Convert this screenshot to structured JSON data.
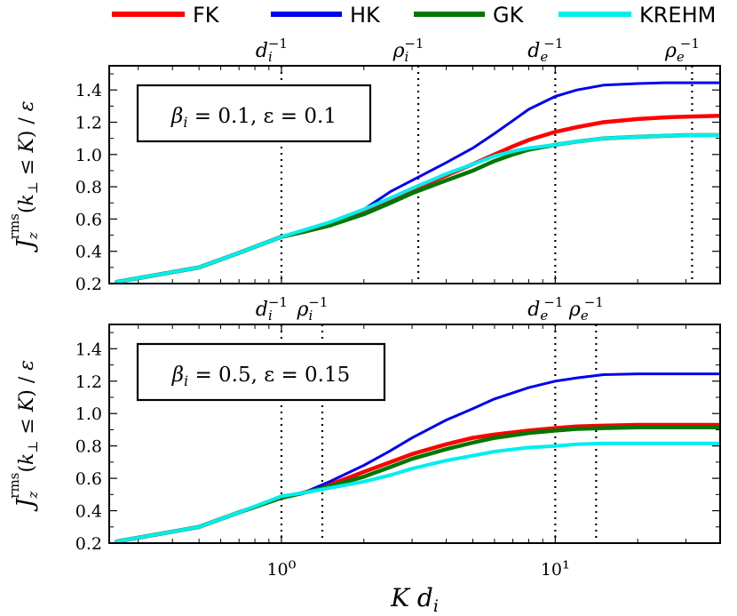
{
  "chart_data": {
    "type": "line",
    "xscale": "log",
    "xlim": [
      0.235,
      40
    ],
    "ylim": [
      0.2,
      1.55
    ],
    "xlabel": "K d_i",
    "ylabel": "J_z^rms(k_⊥ ≤ K) / ε",
    "x_ticks": [
      {
        "value": 1,
        "label": "10⁰"
      },
      {
        "value": 10,
        "label": "10¹"
      }
    ],
    "y_ticks": [
      0.2,
      0.4,
      0.6,
      0.8,
      1.0,
      1.2,
      1.4
    ],
    "y_tick_labels": [
      "0.2",
      "0.4",
      "0.6",
      "0.8",
      "1.0",
      "1.2",
      "1.4"
    ],
    "legend": {
      "position": "top",
      "entries": [
        {
          "name": "FK",
          "color": "#ff0000"
        },
        {
          "name": "HK",
          "color": "#0000ee"
        },
        {
          "name": "GK",
          "color": "#007700"
        },
        {
          "name": "KREHM",
          "color": "#00eeee"
        }
      ]
    },
    "panels": [
      {
        "annotation": "β_i = 0.1, ε = 0.1",
        "vlines": [
          {
            "x": 1.0,
            "label": "d_i^-1"
          },
          {
            "x": 3.16,
            "label": "ρ_i^-1"
          },
          {
            "x": 10.0,
            "label": "d_e^-1"
          },
          {
            "x": 31.6,
            "label": "ρ_e^-1"
          }
        ],
        "series": [
          {
            "name": "FK",
            "color": "#ff0000",
            "width": 4.5,
            "x": [
              0.25,
              0.5,
              0.7,
              1.0,
              1.2,
              1.5,
              2.0,
              2.5,
              3.0,
              4.0,
              5.0,
              6.0,
              7.0,
              8.0,
              10.0,
              12.0,
              15.0,
              20.0,
              25.0,
              30.0,
              40.0
            ],
            "y": [
              0.21,
              0.3,
              0.39,
              0.49,
              0.52,
              0.56,
              0.64,
              0.72,
              0.78,
              0.87,
              0.94,
              1.0,
              1.05,
              1.09,
              1.14,
              1.17,
              1.2,
              1.22,
              1.23,
              1.235,
              1.24
            ]
          },
          {
            "name": "HK",
            "color": "#0000ee",
            "width": 3,
            "x": [
              0.25,
              0.5,
              0.7,
              1.0,
              1.2,
              1.5,
              2.0,
              2.5,
              3.0,
              4.0,
              5.0,
              6.0,
              7.0,
              8.0,
              10.0,
              12.0,
              15.0,
              20.0,
              25.0,
              30.0,
              40.0
            ],
            "y": [
              0.21,
              0.3,
              0.39,
              0.49,
              0.52,
              0.57,
              0.66,
              0.77,
              0.84,
              0.95,
              1.04,
              1.13,
              1.21,
              1.28,
              1.36,
              1.4,
              1.43,
              1.44,
              1.445,
              1.445,
              1.445
            ]
          },
          {
            "name": "GK",
            "color": "#007700",
            "width": 4.5,
            "x": [
              0.25,
              0.5,
              0.7,
              1.0,
              1.2,
              1.5,
              2.0,
              2.5,
              3.0,
              4.0,
              5.0,
              6.0,
              7.0,
              8.0,
              10.0,
              12.0,
              15.0,
              20.0,
              25.0,
              30.0,
              40.0
            ],
            "y": [
              0.21,
              0.3,
              0.39,
              0.49,
              0.52,
              0.56,
              0.63,
              0.7,
              0.76,
              0.84,
              0.9,
              0.96,
              1.0,
              1.03,
              1.06,
              1.08,
              1.1,
              1.11,
              1.115,
              1.12,
              1.12
            ]
          },
          {
            "name": "KREHM",
            "color": "#00eeee",
            "width": 4,
            "x": [
              0.25,
              0.5,
              0.7,
              1.0,
              1.2,
              1.5,
              2.0,
              2.5,
              3.0,
              4.0,
              5.0,
              6.0,
              7.0,
              8.0,
              10.0,
              12.0,
              15.0,
              20.0,
              25.0,
              30.0,
              40.0
            ],
            "y": [
              0.21,
              0.3,
              0.39,
              0.49,
              0.53,
              0.58,
              0.66,
              0.73,
              0.79,
              0.88,
              0.94,
              0.99,
              1.02,
              1.04,
              1.06,
              1.08,
              1.1,
              1.11,
              1.115,
              1.12,
              1.12
            ]
          }
        ]
      },
      {
        "annotation": "β_i = 0.5, ε = 0.15",
        "vlines": [
          {
            "x": 1.0,
            "label": "d_i^-1"
          },
          {
            "x": 1.41,
            "label": "ρ_i^-1"
          },
          {
            "x": 10.0,
            "label": "d_e^-1"
          },
          {
            "x": 14.1,
            "label": "ρ_e^-1"
          }
        ],
        "series": [
          {
            "name": "FK",
            "color": "#ff0000",
            "width": 4.5,
            "x": [
              0.25,
              0.5,
              0.7,
              1.0,
              1.2,
              1.5,
              2.0,
              2.5,
              3.0,
              4.0,
              5.0,
              6.0,
              8.0,
              10.0,
              12.0,
              15.0,
              20.0,
              30.0,
              40.0
            ],
            "y": [
              0.21,
              0.3,
              0.39,
              0.48,
              0.51,
              0.56,
              0.64,
              0.7,
              0.75,
              0.81,
              0.85,
              0.87,
              0.895,
              0.91,
              0.92,
              0.925,
              0.93,
              0.93,
              0.93
            ]
          },
          {
            "name": "HK",
            "color": "#0000ee",
            "width": 3,
            "x": [
              0.25,
              0.5,
              0.7,
              1.0,
              1.2,
              1.5,
              2.0,
              2.5,
              3.0,
              4.0,
              5.0,
              6.0,
              8.0,
              10.0,
              12.0,
              15.0,
              20.0,
              30.0,
              40.0
            ],
            "y": [
              0.21,
              0.3,
              0.39,
              0.48,
              0.51,
              0.58,
              0.68,
              0.77,
              0.85,
              0.96,
              1.03,
              1.09,
              1.16,
              1.2,
              1.22,
              1.24,
              1.245,
              1.245,
              1.245
            ]
          },
          {
            "name": "GK",
            "color": "#007700",
            "width": 4.5,
            "x": [
              0.25,
              0.5,
              0.7,
              1.0,
              1.2,
              1.5,
              2.0,
              2.5,
              3.0,
              4.0,
              5.0,
              6.0,
              8.0,
              10.0,
              12.0,
              15.0,
              20.0,
              30.0,
              40.0
            ],
            "y": [
              0.21,
              0.3,
              0.39,
              0.48,
              0.51,
              0.55,
              0.61,
              0.67,
              0.72,
              0.78,
              0.82,
              0.85,
              0.88,
              0.895,
              0.905,
              0.91,
              0.915,
              0.915,
              0.915
            ]
          },
          {
            "name": "KREHM",
            "color": "#00eeee",
            "width": 4,
            "x": [
              0.25,
              0.5,
              0.7,
              1.0,
              1.2,
              1.5,
              2.0,
              2.5,
              3.0,
              4.0,
              5.0,
              6.0,
              8.0,
              10.0,
              12.0,
              15.0,
              20.0,
              30.0,
              40.0
            ],
            "y": [
              0.21,
              0.3,
              0.39,
              0.49,
              0.51,
              0.54,
              0.58,
              0.62,
              0.66,
              0.71,
              0.74,
              0.765,
              0.79,
              0.8,
              0.81,
              0.815,
              0.815,
              0.815,
              0.815
            ]
          }
        ]
      }
    ]
  }
}
